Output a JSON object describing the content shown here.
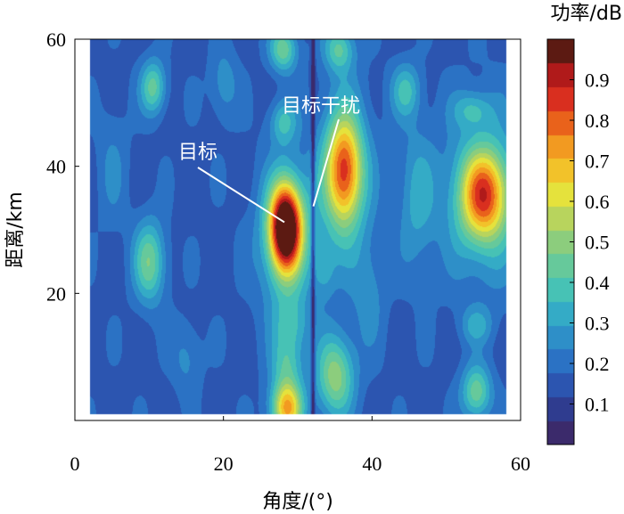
{
  "chart_data": {
    "type": "heatmap",
    "xlabel": "角度/(°)",
    "ylabel": "距离/km",
    "colorbar_label": "功率/dB",
    "xlim": [
      0,
      60
    ],
    "ylim": [
      0,
      60
    ],
    "x_ticks": [
      "0",
      "20",
      "40",
      "60"
    ],
    "y_ticks": [
      "20",
      "40",
      "60"
    ],
    "colorbar_range": [
      0,
      1
    ],
    "colorbar_ticks": [
      "0.1",
      "0.2",
      "0.3",
      "0.4",
      "0.5",
      "0.6",
      "0.7",
      "0.8",
      "0.9"
    ],
    "data_extent": {
      "x": [
        2,
        58
      ],
      "y": [
        1,
        60
      ]
    },
    "colormap": [
      "#3b2a6b",
      "#2f3c8f",
      "#2c55b0",
      "#2b72c4",
      "#2e8fc8",
      "#34abc6",
      "#47c2b5",
      "#66c99b",
      "#8ccd7d",
      "#b8d45d",
      "#e5e23c",
      "#f2c22a",
      "#f29a21",
      "#e9621b",
      "#d92f1f",
      "#b01a1a",
      "#5c1a12"
    ],
    "background_level": 0.16,
    "peaks": [
      {
        "x": 28.3,
        "y": 30.5,
        "sx": 1.5,
        "sy": 4.8,
        "a": 0.88
      },
      {
        "x": 28.5,
        "y": 28.0,
        "sx": 2.8,
        "sy": 8.5,
        "a": 0.22
      },
      {
        "x": 55.0,
        "y": 35.5,
        "sx": 2.3,
        "sy": 5.0,
        "a": 0.54
      },
      {
        "x": 55.0,
        "y": 35.0,
        "sx": 4.0,
        "sy": 10.0,
        "a": 0.18
      },
      {
        "x": 36.2,
        "y": 39.5,
        "sx": 1.7,
        "sy": 6.0,
        "a": 0.55
      },
      {
        "x": 36.2,
        "y": 38.0,
        "sx": 2.8,
        "sy": 10.5,
        "a": 0.16
      },
      {
        "x": 35.0,
        "y": 7.0,
        "sx": 1.8,
        "sy": 4.5,
        "a": 0.35
      },
      {
        "x": 28.5,
        "y": 2.0,
        "sx": 1.5,
        "sy": 3.0,
        "a": 0.55
      },
      {
        "x": 28.5,
        "y": 9.0,
        "sx": 1.5,
        "sy": 3.0,
        "a": 0.2
      },
      {
        "x": 29.0,
        "y": 15.0,
        "sx": 1.6,
        "sy": 3.0,
        "a": 0.16
      },
      {
        "x": 10.0,
        "y": 25.0,
        "sx": 1.5,
        "sy": 4.5,
        "a": 0.3
      },
      {
        "x": 10.5,
        "y": 52.5,
        "sx": 1.2,
        "sy": 3.0,
        "a": 0.28
      },
      {
        "x": 20.0,
        "y": 53.0,
        "sx": 1.3,
        "sy": 4.0,
        "a": 0.12
      },
      {
        "x": 46.0,
        "y": 35.0,
        "sx": 1.8,
        "sy": 8.0,
        "a": 0.15
      },
      {
        "x": 44.5,
        "y": 52.0,
        "sx": 1.4,
        "sy": 3.0,
        "a": 0.2
      },
      {
        "x": 53.5,
        "y": 49.0,
        "sx": 1.8,
        "sy": 2.0,
        "a": 0.16
      },
      {
        "x": 54.0,
        "y": 4.5,
        "sx": 1.4,
        "sy": 3.0,
        "a": 0.3
      },
      {
        "x": 54.0,
        "y": 15.0,
        "sx": 1.5,
        "sy": 2.0,
        "a": 0.14
      },
      {
        "x": 35.5,
        "y": 58.5,
        "sx": 1.4,
        "sy": 2.5,
        "a": 0.25
      },
      {
        "x": 28.0,
        "y": 58.5,
        "sx": 1.3,
        "sy": 2.5,
        "a": 0.3
      },
      {
        "x": 28.0,
        "y": 47.0,
        "sx": 1.3,
        "sy": 2.5,
        "a": 0.2
      },
      {
        "x": 33.5,
        "y": 24.0,
        "sx": 1.0,
        "sy": 3.0,
        "a": 0.12
      },
      {
        "x": 15.0,
        "y": 10.0,
        "sx": 1.4,
        "sy": 4.0,
        "a": 0.1
      },
      {
        "x": 39.5,
        "y": 20.0,
        "sx": 1.6,
        "sy": 6.0,
        "a": 0.1
      },
      {
        "x": 5.0,
        "y": 40.0,
        "sx": 1.5,
        "sy": 7.0,
        "a": 0.08
      }
    ],
    "interference_strip_x": 32,
    "annotations": [
      {
        "text": "目标",
        "x": 28.2,
        "y": 31.2
      },
      {
        "text": "目标干扰",
        "x": 32.1,
        "y": 33.7
      }
    ]
  }
}
